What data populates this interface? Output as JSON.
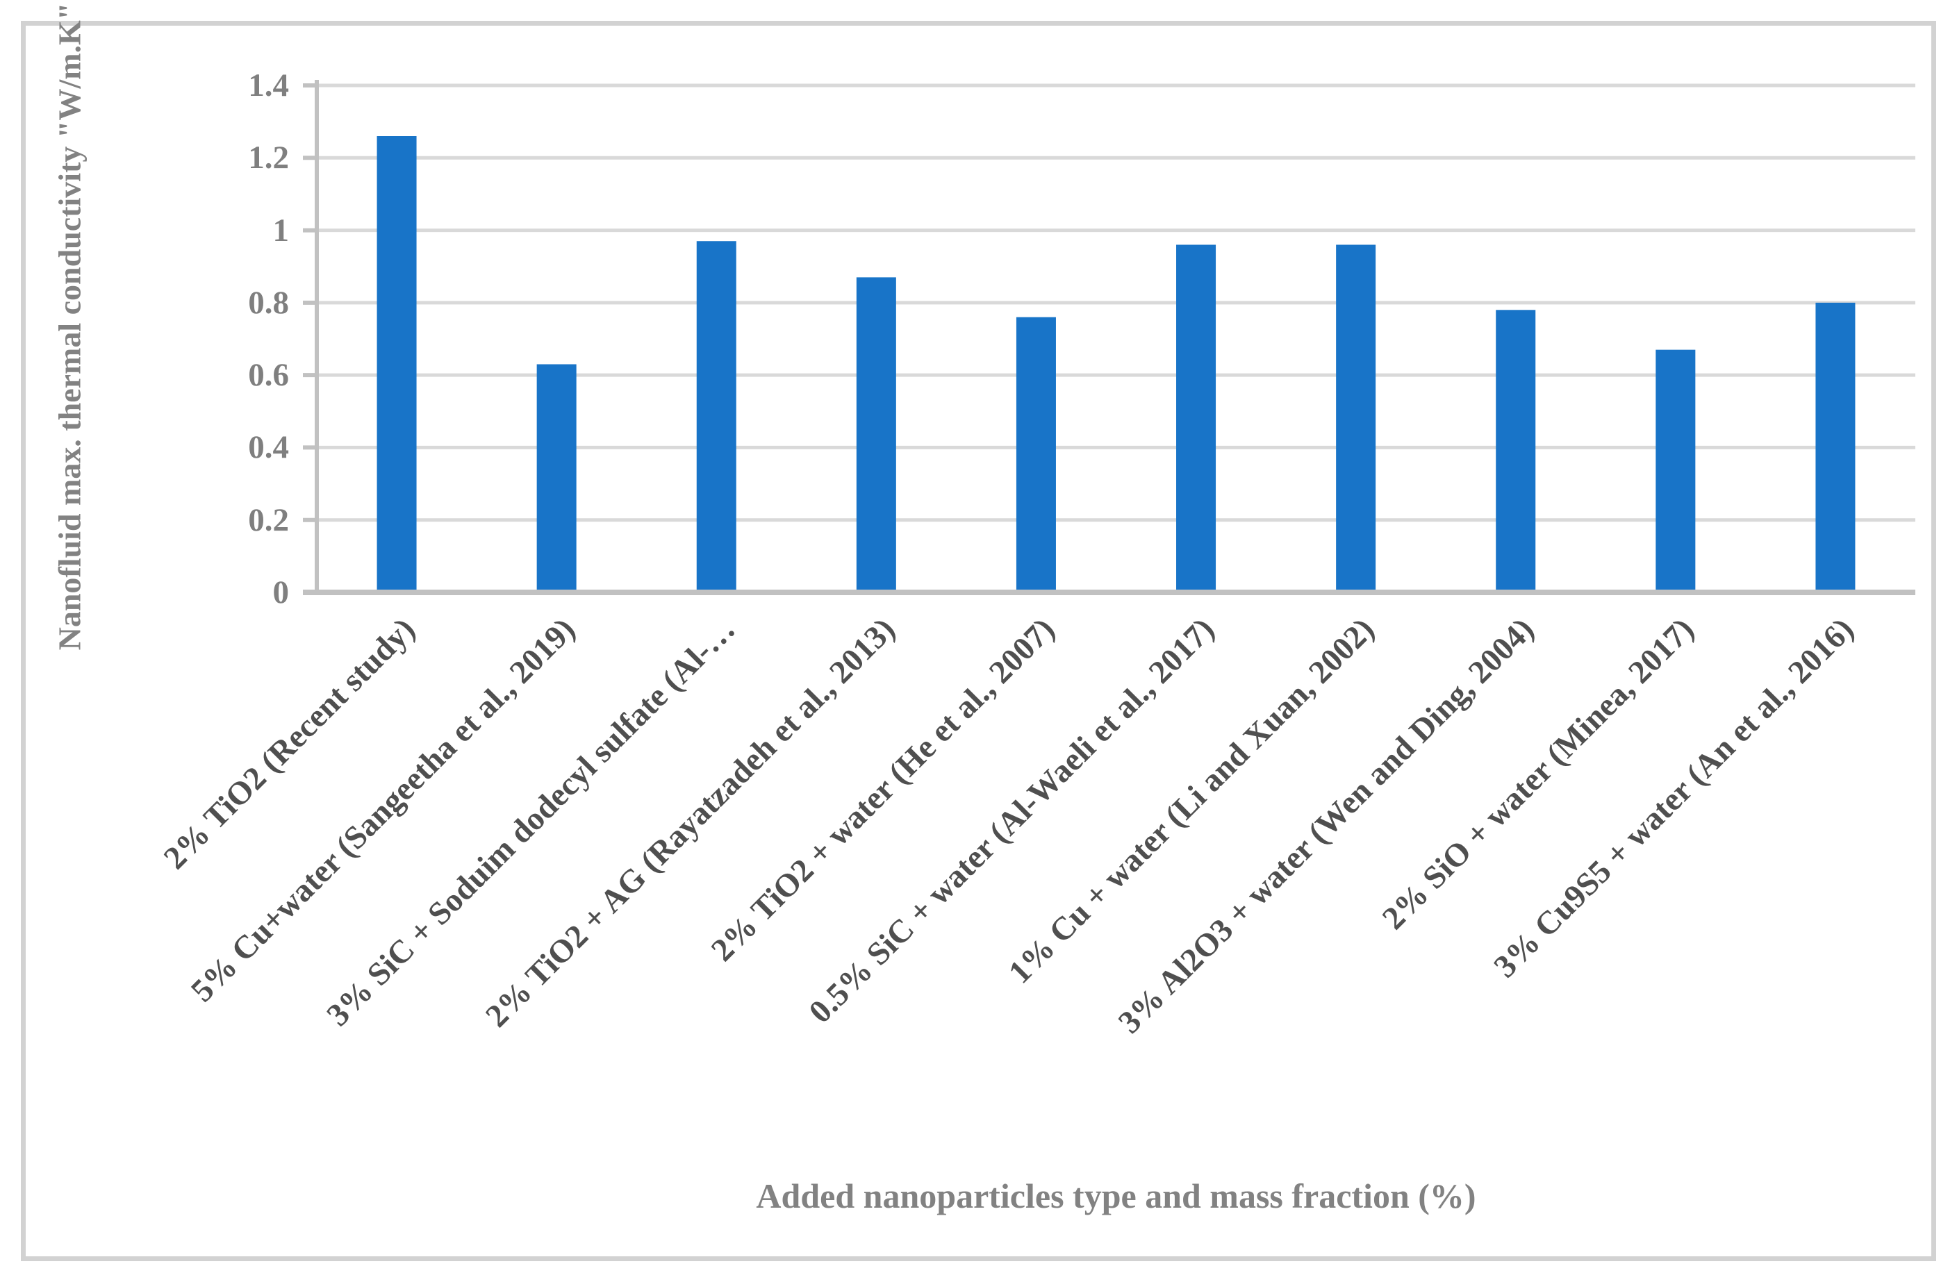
{
  "chart_data": {
    "type": "bar",
    "title": "",
    "xlabel": "Added nanoparticles type and mass fraction (%)",
    "ylabel": "Nanofluid max. thermal conductivity \"W/m.K\"",
    "categories": [
      "2% TiO2 (Recent study)",
      "5% Cu+water (Sangeetha et al., 2019)",
      "3% SiC + Soduim dodecyl sulfate (Al-…",
      "2% TiO2 + AG (Rayatzadeh et al., 2013)",
      "2% TiO2 + water (He et al., 2007)",
      "0.5% SiC + water (Al-Waeli et al., 2017)",
      "1% Cu + water (Li and Xuan, 2002)",
      "3% Al2O3 + water (Wen and Ding, 2004)",
      "2% SiO + water (Minea, 2017)",
      "3% Cu9S5 + water (An et al., 2016)"
    ],
    "values": [
      1.26,
      0.63,
      0.97,
      0.87,
      0.76,
      0.96,
      0.96,
      0.78,
      0.67,
      0.8
    ],
    "ylim": [
      0,
      1.4
    ],
    "ytick_step": 0.2,
    "ytick_labels": [
      "0",
      "0.2",
      "0.4",
      "0.6",
      "0.8",
      "1",
      "1.2",
      "1.4"
    ],
    "grid": "horizontal",
    "legend": "none",
    "category_label_rotation_deg": 45
  },
  "colors": {
    "bar": "#1874C8",
    "gridline": "#D9D9D9",
    "axis_line": "#C1C1C1",
    "tick_text": "#7F7F7F",
    "axis_title_text": "#828282",
    "category_text": "#4F4F4F",
    "frame_border": "#D2D2D2",
    "background": "#FFFFFF"
  }
}
